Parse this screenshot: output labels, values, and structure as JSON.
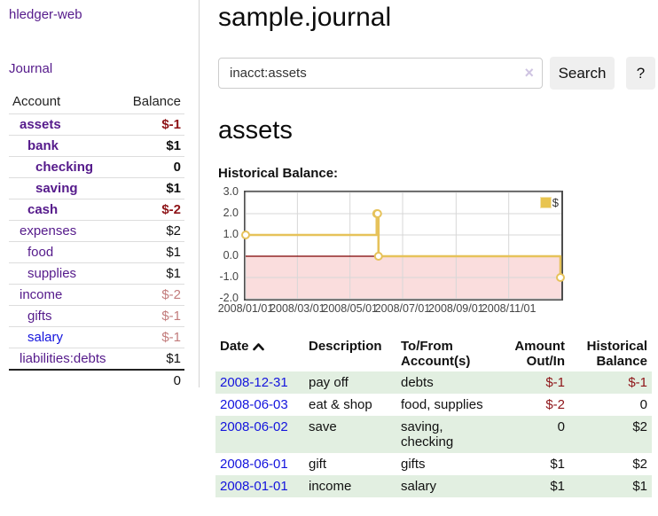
{
  "colors": {
    "link_purple": "#551a8b",
    "link_blue": "#1414dd",
    "negative": "#8e1418",
    "negative_soft": "#c27c7c",
    "row_highlight_green": "#e2efe1",
    "chart_line_gold": "#e6c25a",
    "chart_negative_region_pink": "#fadddd",
    "chart_zero_line_red": "#7d0000"
  },
  "sidebar": {
    "brand": "hledger-web",
    "journal_link": "Journal",
    "accounts_table": {
      "headers": [
        "Account",
        "Balance"
      ],
      "rows": [
        {
          "name": "assets",
          "indent": 0,
          "bold": true,
          "balance": "$-1",
          "balance_style": "neg",
          "balance_bold": true
        },
        {
          "name": "bank",
          "indent": 1,
          "bold": true,
          "balance": "$1",
          "balance_style": "plain",
          "balance_bold": true
        },
        {
          "name": "checking",
          "indent": 2,
          "bold": true,
          "balance": "0",
          "balance_style": "plain",
          "balance_bold": true
        },
        {
          "name": "saving",
          "indent": 2,
          "bold": true,
          "balance": "$1",
          "balance_style": "plain",
          "balance_bold": true
        },
        {
          "name": "cash",
          "indent": 1,
          "bold": true,
          "balance": "$-2",
          "balance_style": "neg",
          "balance_bold": true
        },
        {
          "name": "expenses",
          "indent": 0,
          "bold": false,
          "balance": "$2",
          "balance_style": "plain",
          "balance_bold": false
        },
        {
          "name": "food",
          "indent": 1,
          "bold": false,
          "balance": "$1",
          "balance_style": "plain",
          "balance_bold": false
        },
        {
          "name": "supplies",
          "indent": 1,
          "bold": false,
          "balance": "$1",
          "balance_style": "plain",
          "balance_bold": false
        },
        {
          "name": "income",
          "indent": 0,
          "bold": false,
          "balance": "$-2",
          "balance_style": "soft",
          "balance_bold": false
        },
        {
          "name": "gifts",
          "indent": 1,
          "bold": false,
          "balance": "$-1",
          "balance_style": "soft",
          "balance_bold": false
        },
        {
          "name": "salary",
          "indent": 1,
          "bold": false,
          "balance": "$-1",
          "balance_style": "soft",
          "balance_bold": false,
          "link_color": "blue"
        },
        {
          "name": "liabilities:debts",
          "indent": 0,
          "bold": false,
          "balance": "$1",
          "balance_style": "plain",
          "balance_bold": false
        }
      ],
      "total": "0"
    }
  },
  "main": {
    "title": "sample.journal",
    "search": {
      "value": "inacct:assets",
      "clear_icon": "×",
      "button_label": "Search",
      "help_label": "?"
    },
    "account_heading": "assets",
    "chart_label": "Historical Balance:"
  },
  "chart_data": {
    "type": "line",
    "title": "Historical Balance",
    "step": true,
    "xlim": [
      "2008-01-01",
      "2009-01-01"
    ],
    "ylim": [
      -2,
      3
    ],
    "y_ticks": [
      3,
      2,
      1,
      0,
      -1,
      -2
    ],
    "x_ticks": [
      "2008/01/01",
      "2008/03/01",
      "2008/05/01",
      "2008/07/01",
      "2008/09/01",
      "2008/11/01"
    ],
    "grid": true,
    "negative_region_shaded": true,
    "legend": {
      "position": "top-right"
    },
    "series": [
      {
        "name": "$",
        "points": [
          [
            "2008-01-01",
            1
          ],
          [
            "2008-06-01",
            2
          ],
          [
            "2008-06-02",
            2
          ],
          [
            "2008-06-03",
            0
          ],
          [
            "2008-12-31",
            -1
          ]
        ]
      }
    ],
    "colors": {
      "line": "#e6c25a",
      "marker_fill": "#ffffff",
      "negative_region": "#fadddd",
      "zero_line": "#7d0000",
      "gridline": "#d7d7d7"
    }
  },
  "txn_table": {
    "headers": {
      "date": "Date",
      "date_sort_icon": "chevron-up",
      "description": "Description",
      "accounts": "To/From Account(s)",
      "amount": "Amount Out/In",
      "balance": "Historical Balance"
    },
    "rows": [
      {
        "date": "2008-12-31",
        "description": "pay off",
        "accounts": "debts",
        "amount": "$-1",
        "amount_neg": true,
        "balance": "$-1",
        "balance_neg": true,
        "highlight": true
      },
      {
        "date": "2008-06-03",
        "description": "eat & shop",
        "accounts": "food, supplies",
        "amount": "$-2",
        "amount_neg": true,
        "balance": "0",
        "balance_neg": false,
        "highlight": false
      },
      {
        "date": "2008-06-02",
        "description": "save",
        "accounts": "saving, checking",
        "amount": "0",
        "amount_neg": false,
        "balance": "$2",
        "balance_neg": false,
        "highlight": true
      },
      {
        "date": "2008-06-01",
        "description": "gift",
        "accounts": "gifts",
        "amount": "$1",
        "amount_neg": false,
        "balance": "$2",
        "balance_neg": false,
        "highlight": false
      },
      {
        "date": "2008-01-01",
        "description": "income",
        "accounts": "salary",
        "amount": "$1",
        "amount_neg": false,
        "balance": "$1",
        "balance_neg": false,
        "highlight": true
      }
    ]
  }
}
